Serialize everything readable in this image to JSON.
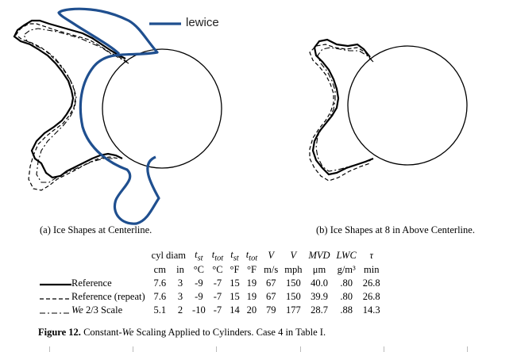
{
  "legend_tag": "lewice",
  "panels": [
    {
      "caption": "(a)  Ice Shapes at Centerline."
    },
    {
      "caption": "(b)  Ice Shapes at 8 in Above Centerline."
    }
  ],
  "table": {
    "headers": [
      "cyl diam",
      "",
      "t",
      "t",
      "t",
      "t",
      "V",
      "V",
      "MVD",
      "LWC",
      "τ"
    ],
    "header_subscripts": [
      "",
      "",
      "st",
      "tot",
      "st",
      "tot",
      "",
      "",
      "",
      "",
      ""
    ],
    "units": [
      "cm",
      "in",
      "°C",
      "°C",
      "°F",
      "°F",
      "m/s",
      "mph",
      "μm",
      "g/m³",
      "min"
    ],
    "rows": [
      {
        "label": "Reference",
        "values": [
          "7.6",
          "3",
          "-9",
          "-7",
          "15",
          "19",
          "67",
          "150",
          "40.0",
          ".80",
          "26.8"
        ]
      },
      {
        "label": "Reference (repeat)",
        "values": [
          "7.6",
          "3",
          "-9",
          "-7",
          "15",
          "19",
          "67",
          "150",
          "39.9",
          ".80",
          "26.8"
        ]
      },
      {
        "label_prefix": "We",
        "label": " 2/3 Scale",
        "values": [
          "5.1",
          "2",
          "-10",
          "-7",
          "14",
          "20",
          "79",
          "177",
          "28.7",
          ".88",
          "14.3"
        ]
      }
    ]
  },
  "figure_caption": {
    "number": "Figure 12.",
    "text_before": "  Constant-",
    "text_italic": "We",
    "text_after": " Scaling Applied to Cylinders.  Case 4 in Table I."
  },
  "colors": {
    "lewice": "#1f4f8f",
    "ink": "#000000"
  }
}
